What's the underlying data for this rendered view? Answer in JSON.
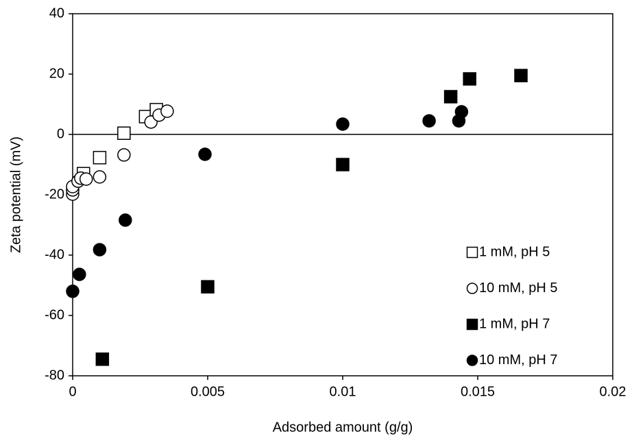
{
  "chart_data": {
    "type": "scatter",
    "x_label": "Adsorbed amount (g/g)",
    "y_label": "Zeta potential (mV)",
    "xlim": [
      0,
      0.02
    ],
    "xticks": [
      0,
      0.005,
      0.01,
      0.015,
      0.02
    ],
    "ylim": [
      -80,
      40
    ],
    "yticks": [
      -80,
      -60,
      -40,
      -20,
      0,
      20,
      40
    ],
    "zero_line": true,
    "legend": "lower right",
    "series": [
      {
        "name": "1 mM, pH 5",
        "marker": "square",
        "filled": false,
        "color": "#000000",
        "x": [
          0.0004,
          0.001,
          0.0019,
          0.0027,
          0.0031
        ],
        "values": [
          -13.0,
          -7.7,
          0.4,
          5.9,
          8.2
        ]
      },
      {
        "name": "10 mM, pH 5",
        "marker": "circle",
        "filled": false,
        "color": "#000000",
        "x": [
          0,
          0,
          0,
          0.0002,
          0.0003,
          0.0005,
          0.001,
          0.0019,
          0.0029,
          0.0032,
          0.0035
        ],
        "values": [
          -19.8,
          -18.4,
          -17.3,
          -15.5,
          -14.5,
          -14.8,
          -14.1,
          -6.8,
          4.1,
          6.4,
          7.7
        ]
      },
      {
        "name": "1 mM, pH 7",
        "marker": "square",
        "filled": true,
        "color": "#000000",
        "x": [
          0.0011,
          0.005,
          0.01,
          0.014,
          0.0147,
          0.0166
        ],
        "values": [
          -74.5,
          -50.5,
          -10,
          12.5,
          18.4,
          19.5
        ]
      },
      {
        "name": "10 mM, pH 7",
        "marker": "circle",
        "filled": true,
        "color": "#000000",
        "x": [
          0,
          0.00025,
          0.001,
          0.00195,
          0.0049,
          0.01,
          0.0132,
          0.0143,
          0.0144
        ],
        "values": [
          -52,
          -46.4,
          -38.2,
          -28.4,
          -6.6,
          3.4,
          4.5,
          4.5,
          7.5
        ]
      }
    ]
  }
}
